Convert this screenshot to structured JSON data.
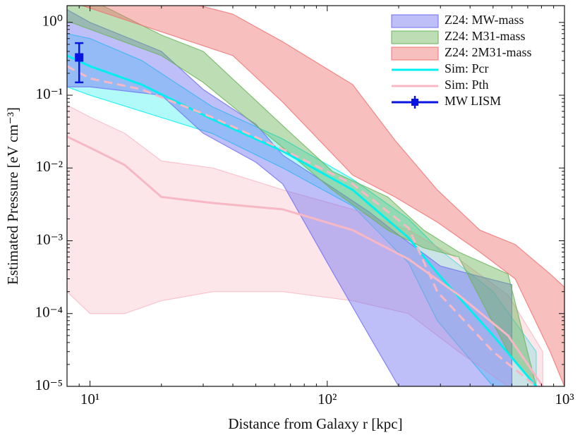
{
  "chart_data": {
    "type": "band-line",
    "xlabel": "Distance from Galaxy r [kpc]",
    "ylabel": "Estimated Pressure [eV cm⁻³]",
    "xscale": "log",
    "yscale": "log",
    "xlim": [
      8,
      1000
    ],
    "ylim": [
      1e-05,
      1.7
    ],
    "xticks": [
      {
        "value": 10,
        "label": "10¹"
      },
      {
        "value": 100,
        "label": "10²"
      },
      {
        "value": 1000,
        "label": "10³"
      }
    ],
    "yticks": [
      {
        "value": 1e-05,
        "label": "10⁻⁵"
      },
      {
        "value": 0.0001,
        "label": "10⁻⁴"
      },
      {
        "value": 0.001,
        "label": "10⁻³"
      },
      {
        "value": 0.01,
        "label": "10⁻²"
      },
      {
        "value": 0.1,
        "label": "10⁻¹"
      },
      {
        "value": 1,
        "label": "10⁰"
      }
    ],
    "legend": "upper right",
    "bands": [
      {
        "name": "Z24: MW-mass",
        "color": "#6f6ff2",
        "x": [
          8,
          10,
          20,
          30,
          50,
          65,
          100,
          150,
          200,
          300,
          400,
          600
        ],
        "upper": [
          1.5,
          1.0,
          0.4,
          0.12,
          0.04,
          0.015,
          0.006,
          0.0025,
          0.0012,
          0.00045,
          0.00035,
          0.00025
        ],
        "lower": [
          0.13,
          0.13,
          0.1,
          0.03,
          0.012,
          0.006,
          0.0005,
          5e-05,
          1e-05,
          1e-05,
          1e-05,
          1e-05
        ]
      },
      {
        "name": "Z24: M31-mass",
        "color": "#6cb45a",
        "x": [
          8,
          20,
          30,
          65,
          105,
          180,
          255,
          358,
          578,
          760
        ],
        "upper": [
          3,
          0.67,
          0.4,
          0.038,
          0.009,
          0.004,
          0.0014,
          0.0007,
          0.00035,
          1e-05
        ],
        "lower": [
          1.05,
          0.35,
          0.15,
          0.019,
          0.005,
          0.0014,
          0.0008,
          0.0006,
          3e-05,
          1e-05
        ]
      },
      {
        "name": "Z24: 2M31-mass",
        "color": "#f07070",
        "x": [
          8,
          40,
          65,
          128,
          193,
          291,
          440,
          620,
          870,
          1000
        ],
        "upper": [
          5,
          1.3,
          0.54,
          0.14,
          0.024,
          0.005,
          0.0014,
          0.00089,
          0.00035,
          0.00023
        ],
        "lower": [
          2,
          0.35,
          0.08,
          0.008,
          0.004,
          0.0018,
          0.0007,
          0.0003,
          3e-05,
          1e-05
        ]
      }
    ],
    "series": [
      {
        "name": "Sim: Pcr",
        "color": "#00f0f0",
        "x": [
          8,
          10,
          16.5,
          32.6,
          65,
          128,
          220,
          291,
          500,
          760
        ],
        "values": [
          0.35,
          0.25,
          0.14,
          0.047,
          0.017,
          0.005,
          0.0011,
          0.00036,
          5e-05,
          1e-05
        ],
        "upper": [
          0.7,
          0.6,
          0.3,
          0.07,
          0.025,
          0.007,
          0.002,
          0.0008,
          0.0002,
          3e-05
        ],
        "lower": [
          0.13,
          0.1,
          0.06,
          0.03,
          0.01,
          0.003,
          0.0005,
          8e-05,
          1e-05,
          1e-05
        ]
      },
      {
        "name": "Sim: Pth",
        "color": "#f7b8c4",
        "x": [
          8,
          10,
          14,
          20,
          33,
          65,
          128,
          220,
          358,
          578,
          810
        ],
        "values": [
          0.027,
          0.019,
          0.011,
          0.004,
          0.0033,
          0.0027,
          0.0014,
          0.00056,
          0.00018,
          5e-05,
          1e-05
        ],
        "upper": [
          0.073,
          0.05,
          0.03,
          0.0125,
          0.01,
          0.005,
          0.0027,
          0.0014,
          0.00056,
          0.00018,
          3e-05
        ],
        "lower": [
          0.0002,
          0.0001,
          0.0001,
          0.00015,
          0.0002,
          0.0002,
          0.00015,
          0.0001,
          3e-05,
          1e-05,
          1e-05
        ]
      },
      {
        "color": "#f7b8c4",
        "dashed": true,
        "x": [
          8,
          10,
          16.5,
          32.6,
          65,
          128,
          220,
          291,
          500,
          760
        ],
        "values": [
          0.25,
          0.17,
          0.12,
          0.05,
          0.018,
          0.006,
          0.0015,
          0.0002,
          3e-05,
          1e-05
        ]
      }
    ],
    "errorbar": {
      "name": "MW LISM",
      "color": "#0a14e0",
      "x": 9,
      "value": 0.33,
      "low": 0.15,
      "high": 0.52
    }
  }
}
